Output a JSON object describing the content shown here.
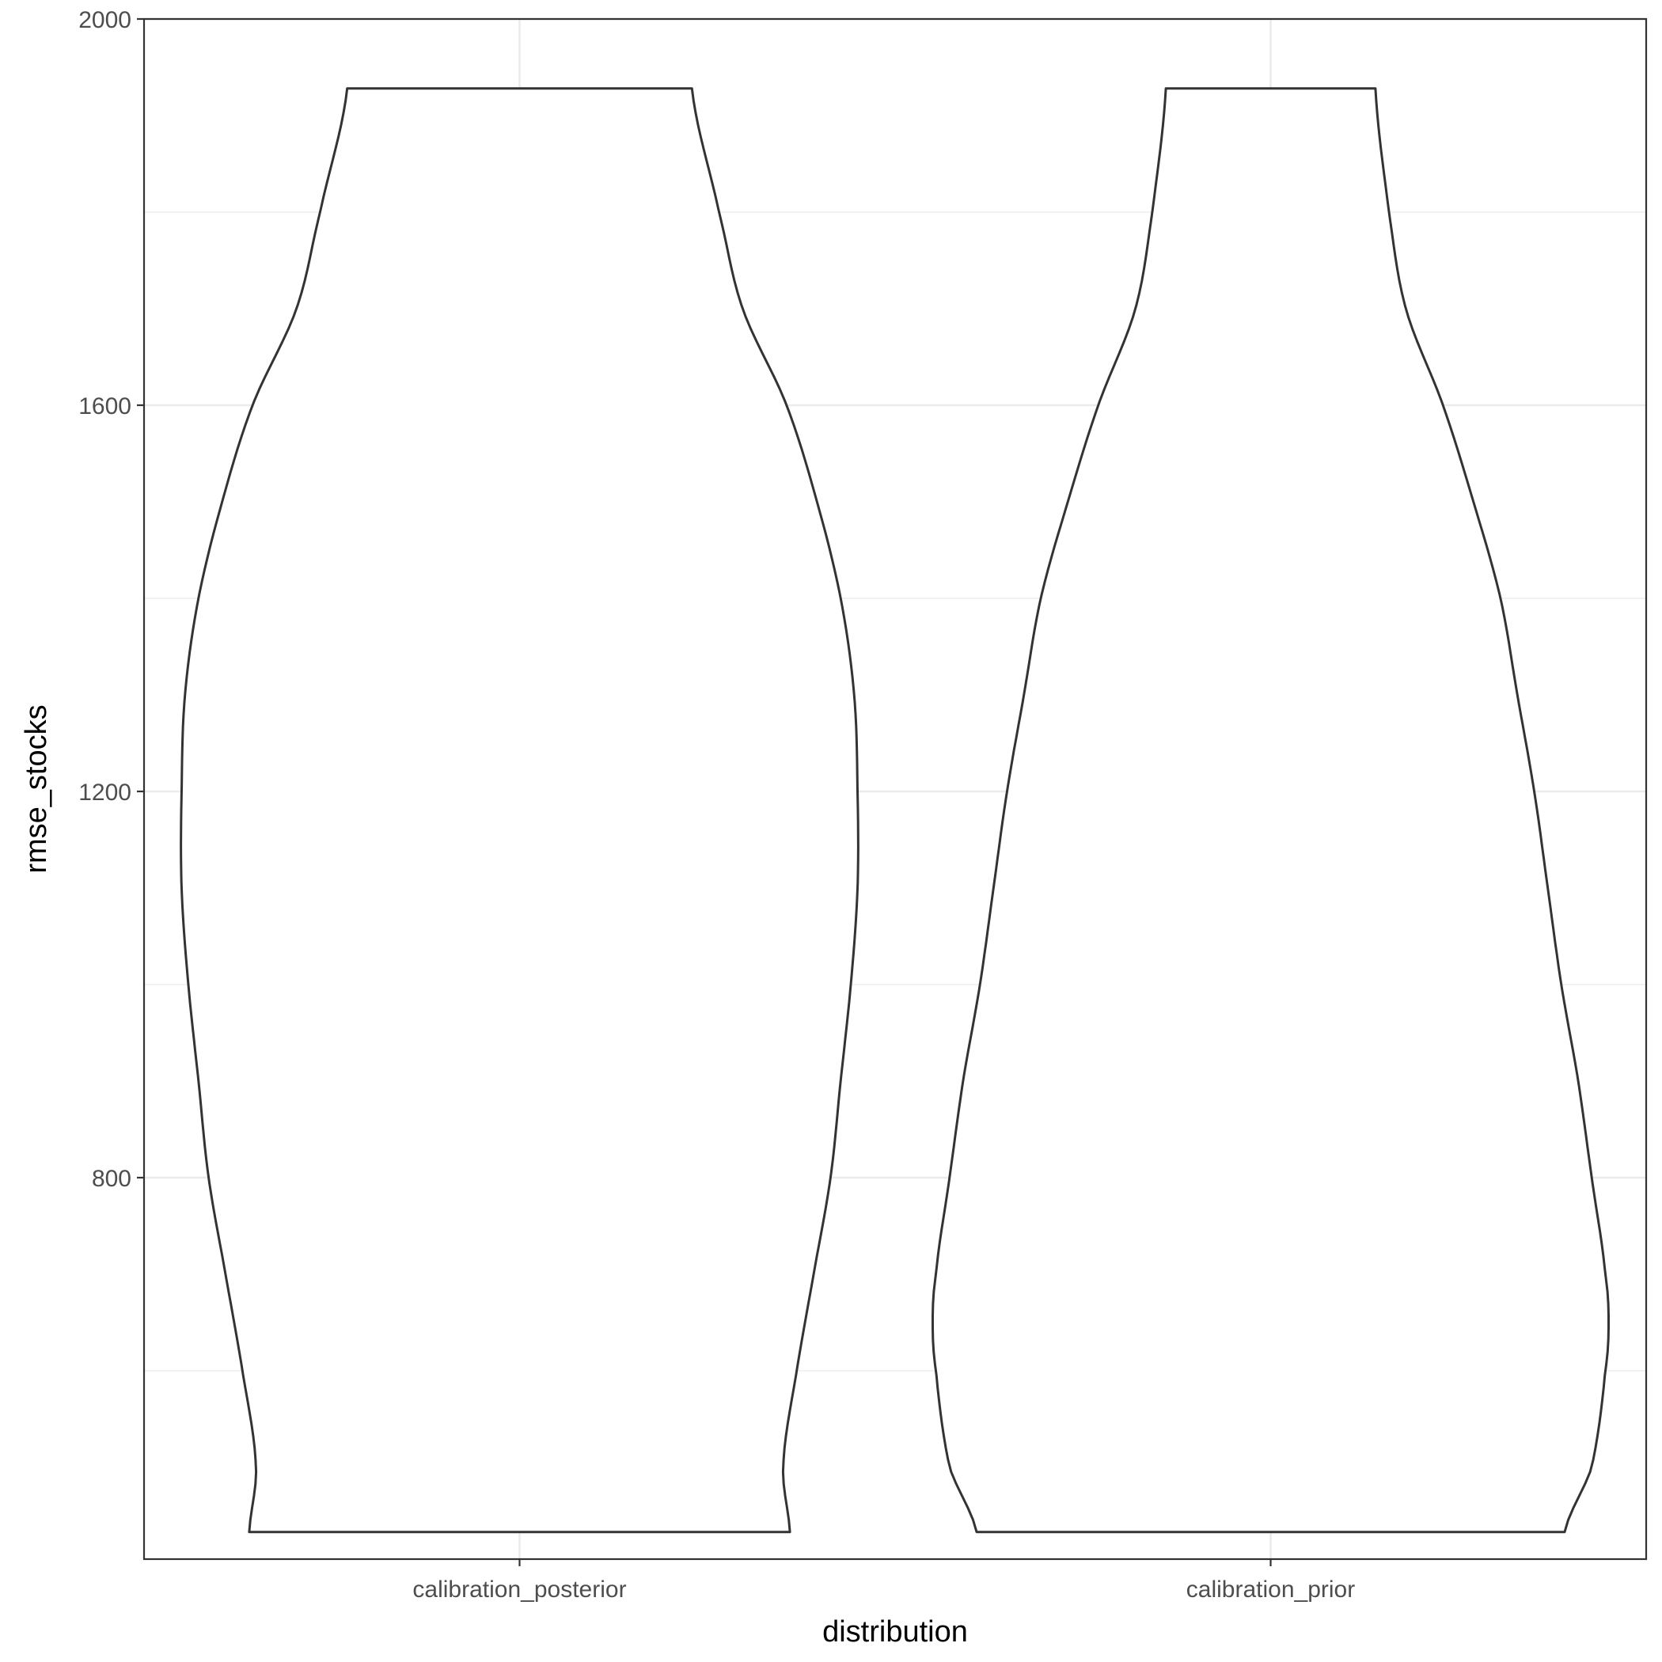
{
  "chart_data": {
    "type": "violin",
    "title": "",
    "xlabel": "distribution",
    "ylabel": "rmse_stocks",
    "ylim": [
      360,
      2000
    ],
    "y_ticks": [
      800,
      1200,
      1600,
      2000
    ],
    "grid": true,
    "theme": "bw",
    "categories": [
      "calibration_posterior",
      "calibration_prior"
    ],
    "violins": [
      {
        "category": "calibration_posterior",
        "min": 433,
        "max": 1928,
        "density_profile": [
          [
            1928,
            0.51
          ],
          [
            1800,
            0.59
          ],
          [
            1700,
            0.66
          ],
          [
            1600,
            0.79
          ],
          [
            1500,
            0.88
          ],
          [
            1400,
            0.95
          ],
          [
            1300,
            0.99
          ],
          [
            1200,
            1.0
          ],
          [
            1100,
            1.0
          ],
          [
            1000,
            0.98
          ],
          [
            900,
            0.95
          ],
          [
            800,
            0.92
          ],
          [
            700,
            0.87
          ],
          [
            600,
            0.82
          ],
          [
            500,
            0.78
          ],
          [
            433,
            0.8
          ]
        ]
      },
      {
        "category": "calibration_prior",
        "min": 433,
        "max": 1928,
        "density_profile": [
          [
            1928,
            0.31
          ],
          [
            1800,
            0.35
          ],
          [
            1700,
            0.4
          ],
          [
            1600,
            0.51
          ],
          [
            1500,
            0.6
          ],
          [
            1400,
            0.68
          ],
          [
            1300,
            0.73
          ],
          [
            1200,
            0.78
          ],
          [
            1100,
            0.82
          ],
          [
            1000,
            0.86
          ],
          [
            900,
            0.91
          ],
          [
            800,
            0.95
          ],
          [
            700,
            0.99
          ],
          [
            650,
            1.0
          ],
          [
            600,
            0.99
          ],
          [
            500,
            0.95
          ],
          [
            433,
            0.87
          ]
        ]
      }
    ]
  }
}
